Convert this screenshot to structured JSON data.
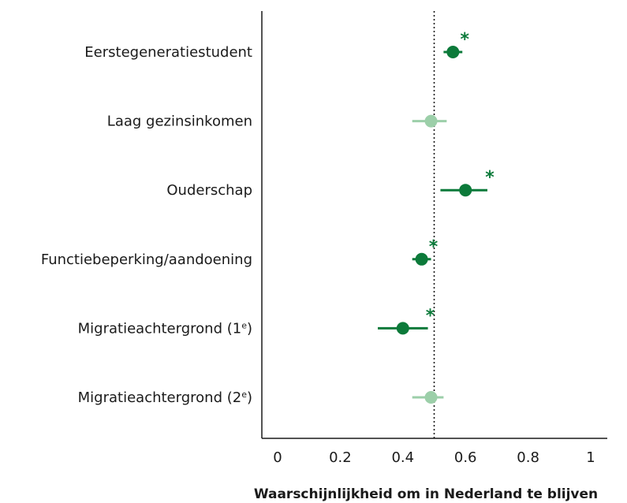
{
  "chart_data": {
    "type": "scatter",
    "subtype": "forest-plot",
    "xlabel": "Waarschijnlijkheid om in Nederland te blijven",
    "ylabel": "",
    "xlim": [
      -0.05,
      1.02
    ],
    "xticks": [
      0,
      0.2,
      0.4,
      0.6,
      0.8,
      1
    ],
    "xtick_labels": [
      "0",
      "0.2",
      "0.4",
      "0.6",
      "0.8",
      "1"
    ],
    "reference_line": 0.5,
    "grid": false,
    "colors": {
      "significant": "#0c7a3a",
      "not_significant": "#9ccfa9",
      "axis": "#1a1a1a"
    },
    "significance_marker": "*",
    "points": [
      {
        "label": "Eerstegeneratiestudent",
        "estimate": 0.56,
        "ci_low": 0.53,
        "ci_high": 0.59,
        "significant": true
      },
      {
        "label": "Laag gezinsinkomen",
        "estimate": 0.49,
        "ci_low": 0.43,
        "ci_high": 0.54,
        "significant": false
      },
      {
        "label": "Ouderschap",
        "estimate": 0.6,
        "ci_low": 0.52,
        "ci_high": 0.67,
        "significant": true
      },
      {
        "label": "Functiebeperking/aandoening",
        "estimate": 0.46,
        "ci_low": 0.43,
        "ci_high": 0.49,
        "significant": true
      },
      {
        "label": "Migratieachtergrond (1",
        "superscript": "e",
        "label_suffix": ")",
        "estimate": 0.4,
        "ci_low": 0.32,
        "ci_high": 0.48,
        "significant": true
      },
      {
        "label": "Migratieachtergrond (2",
        "superscript": "e",
        "label_suffix": ")",
        "estimate": 0.49,
        "ci_low": 0.43,
        "ci_high": 0.53,
        "significant": false
      }
    ]
  }
}
